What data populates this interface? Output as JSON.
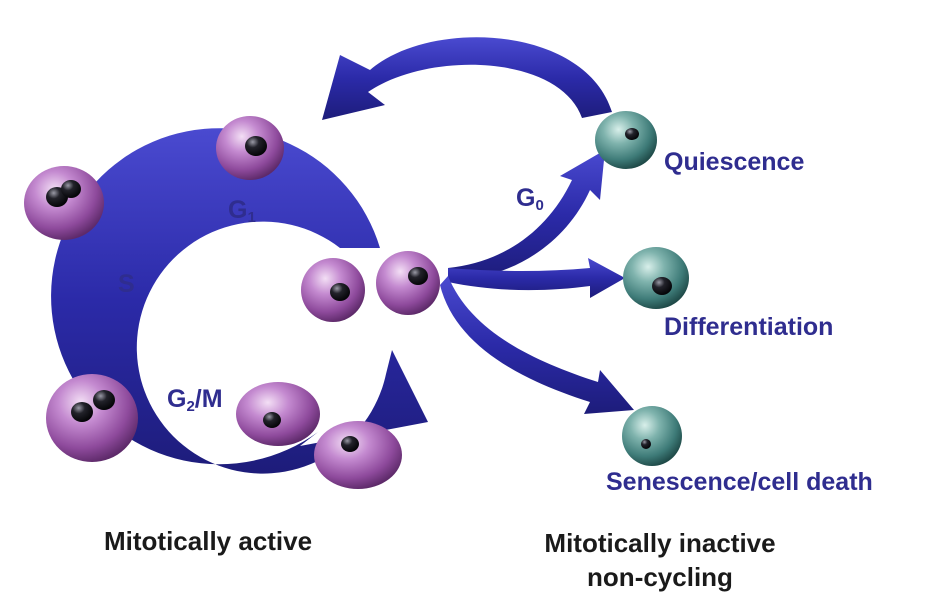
{
  "phases": {
    "g1": {
      "letter": "G",
      "sub": "1"
    },
    "s": "S",
    "g2m": {
      "letter": "G",
      "sub": "2",
      "suffix": "/M"
    },
    "g0": {
      "letter": "G",
      "sub": "0"
    }
  },
  "fates": {
    "quiescence": "Quiescence",
    "differentiation": "Differentiation",
    "senescence": "Senescence/cell death"
  },
  "captions": {
    "active": "Mitotically active",
    "inactive_line1": "Mitotically inactive",
    "inactive_line2": "non-cycling"
  },
  "colors": {
    "arrow": "#2b2aa8",
    "cycling_cell": "#a463b3",
    "noncycling_cell": "#3e7b78",
    "label": "#2f2d8f"
  }
}
